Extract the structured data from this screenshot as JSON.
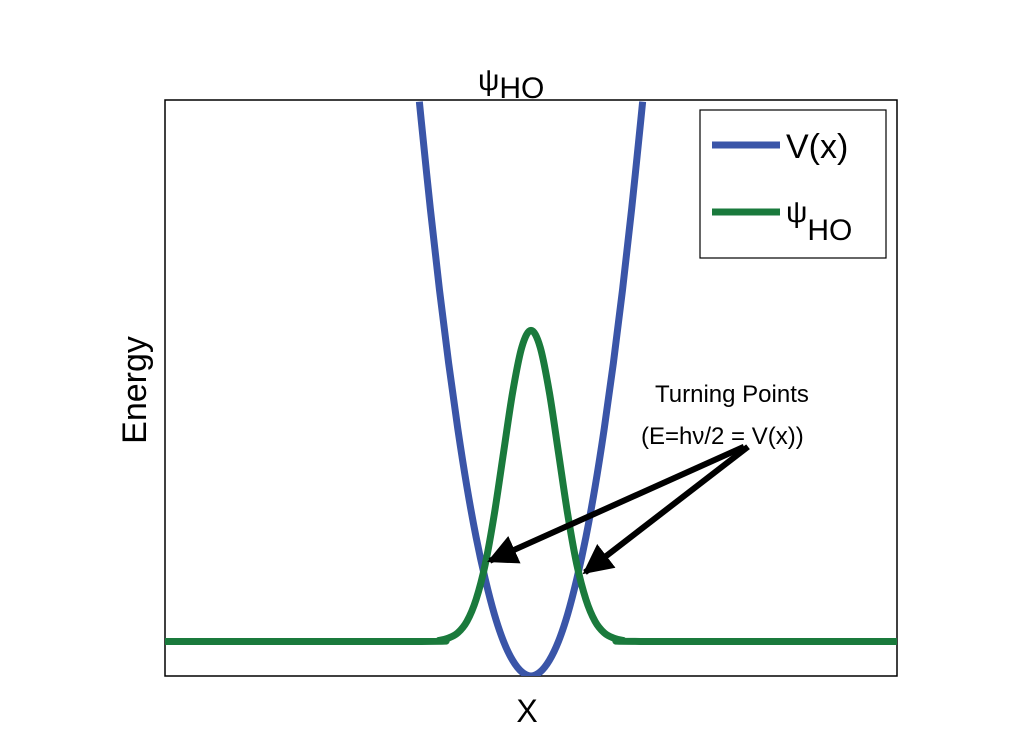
{
  "chart_data": {
    "type": "line",
    "title": "ψ",
    "title_subscript": "HO",
    "xlabel": "X",
    "ylabel": "Energy",
    "xlim": [
      -4,
      4
    ],
    "ylim": [
      0,
      10
    ],
    "grid": false,
    "ticks": false,
    "legend": {
      "placement": "top-right",
      "entries": [
        {
          "label": "V(x)",
          "subscript": ""
        },
        {
          "label": "ψ",
          "subscript": "HO"
        }
      ]
    },
    "series": [
      {
        "name": "V(x)",
        "color": "#3a55a8",
        "x": [
          -1.22,
          -1.2,
          -1.1,
          -1.0,
          -0.9,
          -0.8,
          -0.7,
          -0.6,
          -0.5,
          -0.4,
          -0.3,
          -0.2,
          -0.1,
          0,
          0.1,
          0.2,
          0.3,
          0.4,
          0.5,
          0.6,
          0.7,
          0.8,
          0.9,
          1.0,
          1.1,
          1.2,
          1.22
        ],
        "y": [
          9.97,
          9.65,
          8.11,
          6.7,
          5.43,
          4.29,
          3.28,
          2.41,
          1.68,
          1.07,
          0.6,
          0.27,
          0.07,
          0,
          0.07,
          0.27,
          0.6,
          1.07,
          1.68,
          2.41,
          3.28,
          4.29,
          5.43,
          6.7,
          8.11,
          9.65,
          9.97
        ]
      },
      {
        "name": "ψHO",
        "color": "#1a7a3c",
        "x": [
          -4,
          -1.2,
          -1.0,
          -0.9,
          -0.8,
          -0.7,
          -0.6,
          -0.5,
          -0.4,
          -0.3,
          -0.2,
          -0.1,
          0,
          0.1,
          0.2,
          0.3,
          0.4,
          0.5,
          0.6,
          0.7,
          0.8,
          0.9,
          1.0,
          1.2,
          4
        ],
        "y": [
          0.6,
          0.6,
          0.62,
          0.66,
          0.75,
          0.95,
          1.33,
          1.94,
          2.82,
          3.88,
          4.93,
          5.71,
          6.0,
          5.71,
          4.93,
          3.88,
          2.82,
          1.94,
          1.33,
          0.95,
          0.75,
          0.66,
          0.62,
          0.6,
          0.6
        ]
      }
    ],
    "annotation": {
      "line1": "Turning Points",
      "line2": "(E=hν/2 = V(x))",
      "arrow_tail": [
        2.35,
        3.98
      ],
      "arrow_tips": [
        [
          -0.45,
          2.0
        ],
        [
          0.59,
          1.8
        ]
      ]
    }
  }
}
